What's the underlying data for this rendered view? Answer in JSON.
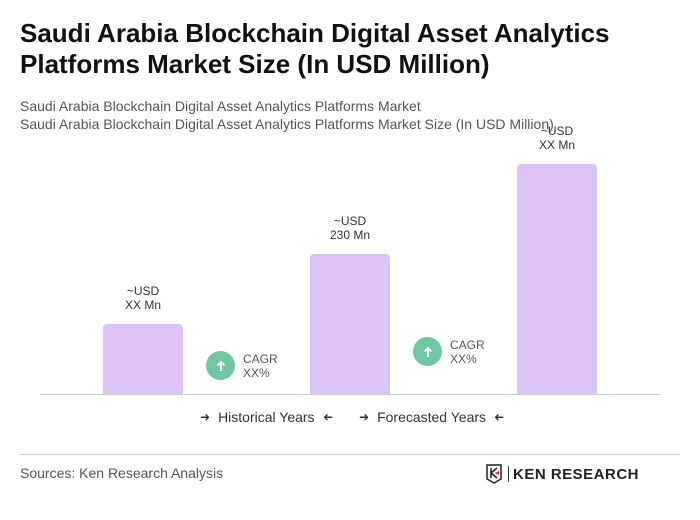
{
  "title": "Saudi Arabia Blockchain Digital Asset Analytics Platforms Market Size (In USD Million)",
  "subtitle1": "Saudi Arabia Blockchain Digital Asset Analytics Platforms Market",
  "subtitle2": "Saudi Arabia Blockchain Digital Asset Analytics Platforms Market Size (In USD Million)",
  "chart_data": {
    "type": "bar",
    "categories": [
      "",
      "",
      ""
    ],
    "values": [
      115,
      230,
      378
    ],
    "data_labels": [
      [
        "~USD",
        "XX Mn"
      ],
      [
        "~USD",
        "230 Mn"
      ],
      [
        "~USD",
        "XX Mn"
      ]
    ],
    "bar_color": "#dcc3f7",
    "grid": false
  },
  "cagr": [
    {
      "label": "CAGR",
      "value": "XX%"
    },
    {
      "label": "CAGR",
      "value": "XX%"
    }
  ],
  "cagr_color": "#6fc7a3",
  "legend": {
    "historical": "Historical Years",
    "forecasted": "Forecasted Years"
  },
  "sources": "Sources: Ken Research Analysis",
  "logo": "KEN RESEARCH"
}
